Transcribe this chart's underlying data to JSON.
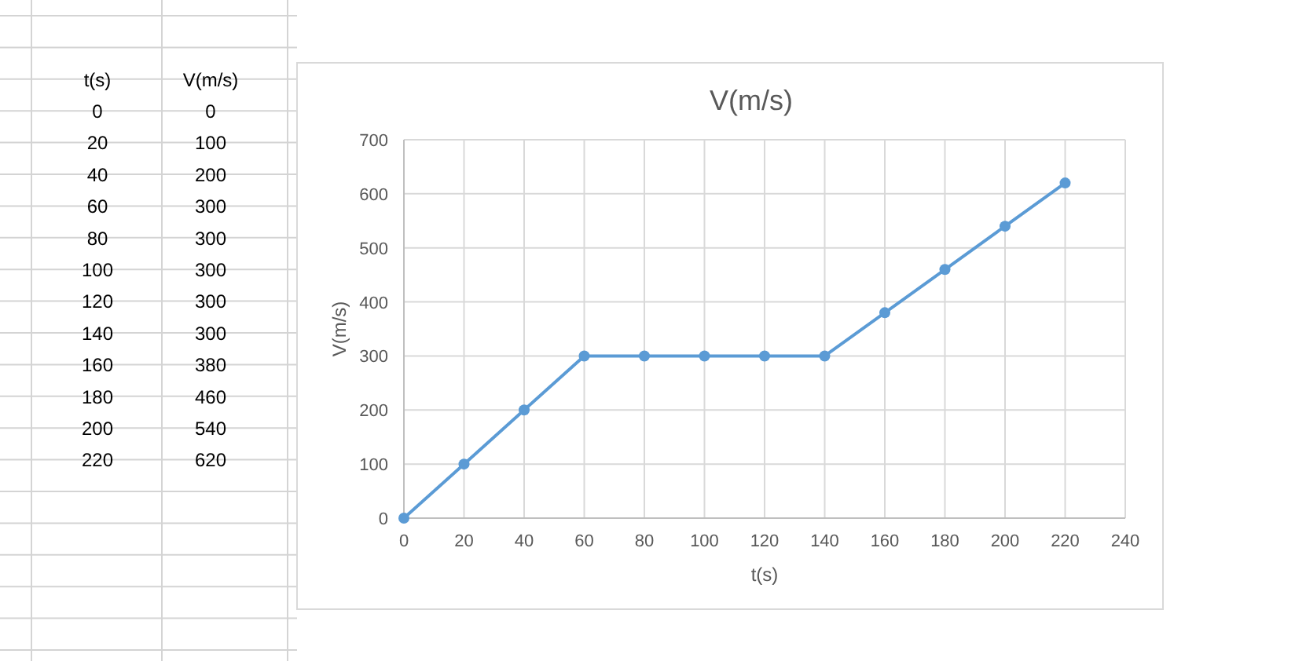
{
  "chart_data": [
    {
      "type": "heatmap",
      "data_labels": true,
      "ylabel": "t(s)",
      "categories": [
        "V(m/s)"
      ],
      "y_categories": [
        "0",
        "20",
        "40",
        "60",
        "80",
        "100",
        "120",
        "140",
        "160",
        "180",
        "200",
        "220"
      ],
      "cells": [
        [
          0
        ],
        [
          100
        ],
        [
          200
        ],
        [
          300
        ],
        [
          300
        ],
        [
          300
        ],
        [
          300
        ],
        [
          300
        ],
        [
          380
        ],
        [
          460
        ],
        [
          540
        ],
        [
          620
        ]
      ]
    },
    {
      "type": "line",
      "title": "V(m/s)",
      "xlabel": "t(s)",
      "ylabel": "V(m/s)",
      "x": [
        0,
        20,
        40,
        60,
        80,
        100,
        120,
        140,
        160,
        180,
        200,
        220
      ],
      "series": [
        {
          "color": "#5b9bd5",
          "values": [
            0,
            100,
            200,
            300,
            300,
            300,
            300,
            300,
            380,
            460,
            540,
            620
          ]
        }
      ],
      "xlim": [
        0,
        240
      ],
      "xticks": [
        0,
        20,
        40,
        60,
        80,
        100,
        120,
        140,
        160,
        180,
        200,
        220,
        240
      ],
      "ylim": [
        0,
        700
      ],
      "yticks": [
        0,
        100,
        200,
        300,
        400,
        500,
        600,
        700
      ],
      "grid": true,
      "marker": "circle",
      "line_style": "solid"
    }
  ]
}
